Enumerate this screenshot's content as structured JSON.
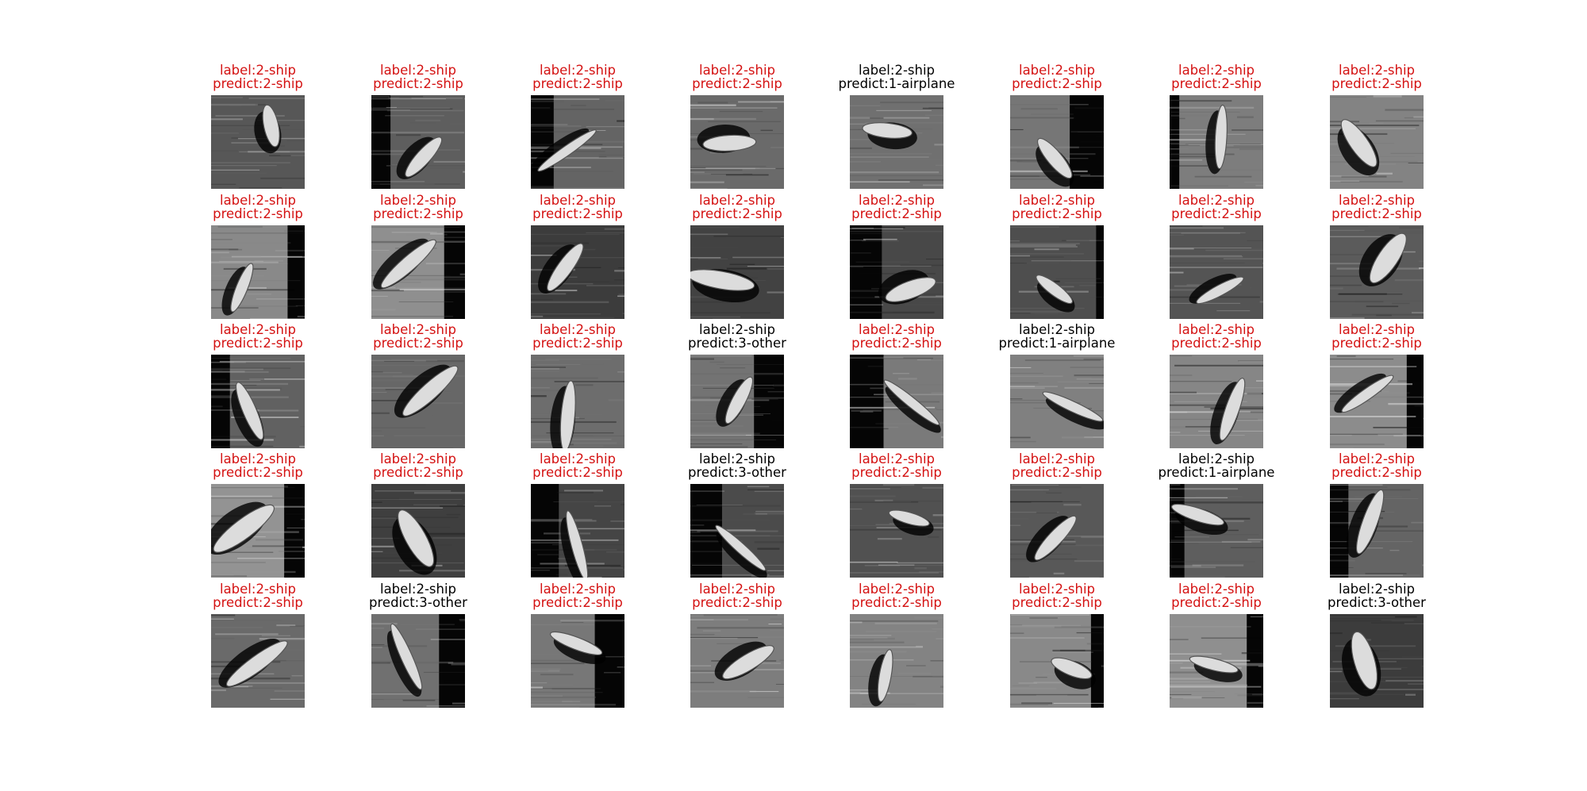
{
  "colors": {
    "correct": "#d41212",
    "wrong": "#000000"
  },
  "rows": [
    [
      {
        "label": "label:2-ship",
        "predict": "predict:2-ship",
        "correct": true
      },
      {
        "label": "label:2-ship",
        "predict": "predict:2-ship",
        "correct": true
      },
      {
        "label": "label:2-ship",
        "predict": "predict:2-ship",
        "correct": true
      },
      {
        "label": "label:2-ship",
        "predict": "predict:2-ship",
        "correct": true
      },
      {
        "label": "label:2-ship",
        "predict": "predict:1-airplane",
        "correct": false
      },
      {
        "label": "label:2-ship",
        "predict": "predict:2-ship",
        "correct": true
      },
      {
        "label": "label:2-ship",
        "predict": "predict:2-ship",
        "correct": true
      },
      {
        "label": "label:2-ship",
        "predict": "predict:2-ship",
        "correct": true
      }
    ],
    [
      {
        "label": "label:2-ship",
        "predict": "predict:2-ship",
        "correct": true
      },
      {
        "label": "label:2-ship",
        "predict": "predict:2-ship",
        "correct": true
      },
      {
        "label": "label:2-ship",
        "predict": "predict:2-ship",
        "correct": true
      },
      {
        "label": "label:2-ship",
        "predict": "predict:2-ship",
        "correct": true
      },
      {
        "label": "label:2-ship",
        "predict": "predict:2-ship",
        "correct": true
      },
      {
        "label": "label:2-ship",
        "predict": "predict:2-ship",
        "correct": true
      },
      {
        "label": "label:2-ship",
        "predict": "predict:2-ship",
        "correct": true
      },
      {
        "label": "label:2-ship",
        "predict": "predict:2-ship",
        "correct": true
      }
    ],
    [
      {
        "label": "label:2-ship",
        "predict": "predict:2-ship",
        "correct": true
      },
      {
        "label": "label:2-ship",
        "predict": "predict:2-ship",
        "correct": true
      },
      {
        "label": "label:2-ship",
        "predict": "predict:2-ship",
        "correct": true
      },
      {
        "label": "label:2-ship",
        "predict": "predict:3-other",
        "correct": false
      },
      {
        "label": "label:2-ship",
        "predict": "predict:2-ship",
        "correct": true
      },
      {
        "label": "label:2-ship",
        "predict": "predict:1-airplane",
        "correct": false
      },
      {
        "label": "label:2-ship",
        "predict": "predict:2-ship",
        "correct": true
      },
      {
        "label": "label:2-ship",
        "predict": "predict:2-ship",
        "correct": true
      }
    ],
    [
      {
        "label": "label:2-ship",
        "predict": "predict:2-ship",
        "correct": true
      },
      {
        "label": "label:2-ship",
        "predict": "predict:2-ship",
        "correct": true
      },
      {
        "label": "label:2-ship",
        "predict": "predict:2-ship",
        "correct": true
      },
      {
        "label": "label:2-ship",
        "predict": "predict:3-other",
        "correct": false
      },
      {
        "label": "label:2-ship",
        "predict": "predict:2-ship",
        "correct": true
      },
      {
        "label": "label:2-ship",
        "predict": "predict:2-ship",
        "correct": true
      },
      {
        "label": "label:2-ship",
        "predict": "predict:1-airplane",
        "correct": false
      },
      {
        "label": "label:2-ship",
        "predict": "predict:2-ship",
        "correct": true
      }
    ],
    [
      {
        "label": "label:2-ship",
        "predict": "predict:2-ship",
        "correct": true
      },
      {
        "label": "label:2-ship",
        "predict": "predict:3-other",
        "correct": false
      },
      {
        "label": "label:2-ship",
        "predict": "predict:2-ship",
        "correct": true
      },
      {
        "label": "label:2-ship",
        "predict": "predict:2-ship",
        "correct": true
      },
      {
        "label": "label:2-ship",
        "predict": "predict:2-ship",
        "correct": true
      },
      {
        "label": "label:2-ship",
        "predict": "predict:2-ship",
        "correct": true
      },
      {
        "label": "label:2-ship",
        "predict": "predict:2-ship",
        "correct": true
      },
      {
        "label": "label:2-ship",
        "predict": "predict:3-other",
        "correct": false
      }
    ]
  ]
}
